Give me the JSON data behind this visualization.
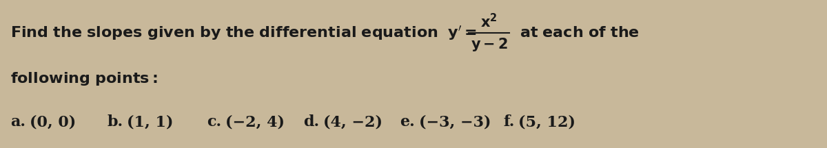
{
  "background_color": "#c8b89a",
  "text_color": "#1a1a1a",
  "intro_text": "Find the slopes given by the differential equation  $y' = \\dfrac{x^2}{y-2}$  at each of the",
  "line2": "following points:",
  "points": [
    [
      "a.",
      "(0, 0)"
    ],
    [
      "b.",
      "(1, 1)"
    ],
    [
      "c.",
      "(−2, 4)"
    ],
    [
      "d.",
      "(4, −2)"
    ],
    [
      "e.",
      "(−3, −3)"
    ],
    [
      "f.",
      "(5, 12)"
    ]
  ],
  "font_size_main": 16,
  "fig_width": 12.0,
  "fig_height": 2.16,
  "dpi": 100
}
